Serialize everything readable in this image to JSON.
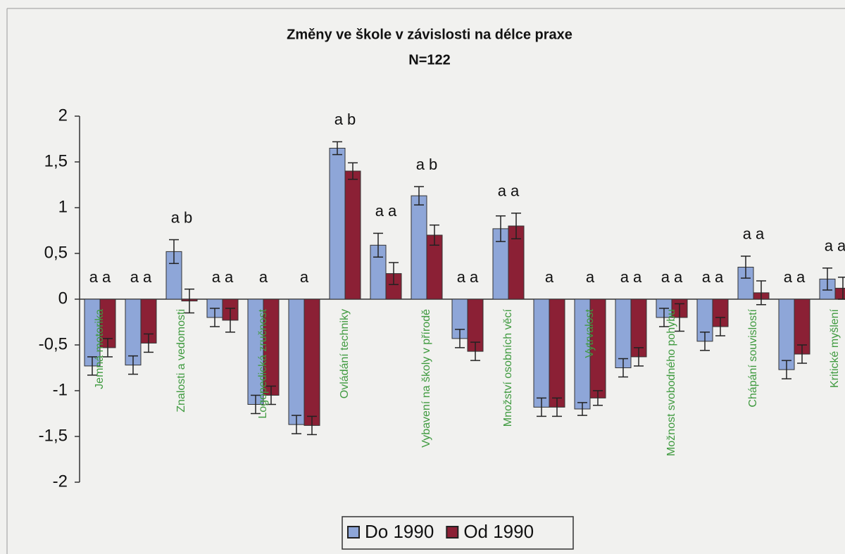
{
  "chart_data": {
    "type": "bar",
    "title": "Změny ve škole v závislosti na délce praxe",
    "subtitle": "N=122",
    "categories": [
      "Jemná motorika",
      null,
      "Znalosti a vedomosti",
      null,
      "Logopedická zručnost",
      null,
      "Ovládání techniky",
      null,
      "Vybavení na školy v přírodě",
      null,
      "Množství osobních věcí",
      null,
      "Vytrvalost",
      null,
      "Možnost svobodného pohybu",
      null,
      "Chápání souvislostí",
      null,
      "Kritické myšlení"
    ],
    "annotations": [
      "a a",
      "a a",
      "a b",
      "a a",
      "a",
      "a",
      "a b",
      "a a",
      "a b",
      "a a",
      "a a",
      "a",
      "a",
      "a a",
      "a a",
      "a a",
      "a a",
      "a a",
      "a a"
    ],
    "series": [
      {
        "name": "Do 1990",
        "color": "#8ea6d8",
        "values": [
          -0.73,
          -0.72,
          0.52,
          -0.2,
          -1.15,
          -1.37,
          1.65,
          0.59,
          1.13,
          -0.43,
          0.77,
          -1.18,
          -1.2,
          -0.75,
          -0.2,
          -0.46,
          0.35,
          -0.77,
          0.22
        ],
        "errors": [
          0.1,
          0.1,
          0.13,
          0.1,
          0.1,
          0.1,
          0.07,
          0.13,
          0.1,
          0.1,
          0.14,
          0.1,
          0.07,
          0.1,
          0.1,
          0.1,
          0.12,
          0.1,
          0.12
        ]
      },
      {
        "name": "Od 1990",
        "color": "#8b2035",
        "values": [
          -0.53,
          -0.48,
          -0.02,
          -0.23,
          -1.05,
          -1.38,
          1.4,
          0.28,
          0.7,
          -0.57,
          0.8,
          -1.18,
          -1.08,
          -0.63,
          -0.2,
          -0.3,
          0.07,
          -0.6,
          0.12
        ],
        "errors": [
          0.1,
          0.1,
          0.13,
          0.13,
          0.1,
          0.1,
          0.09,
          0.12,
          0.11,
          0.1,
          0.14,
          0.1,
          0.08,
          0.1,
          0.15,
          0.1,
          0.13,
          0.1,
          0.12
        ]
      }
    ],
    "ylim": [
      -2,
      2
    ],
    "yticks": [
      {
        "value": -2,
        "label": "-2"
      },
      {
        "value": -1.5,
        "label": "-1,5"
      },
      {
        "value": -1,
        "label": "-1"
      },
      {
        "value": -0.5,
        "label": "-0,5"
      },
      0,
      {
        "value": 0.5,
        "label": "0,5"
      },
      1,
      {
        "value": 1.5,
        "label": "1,5"
      },
      2
    ],
    "grid": false
  }
}
